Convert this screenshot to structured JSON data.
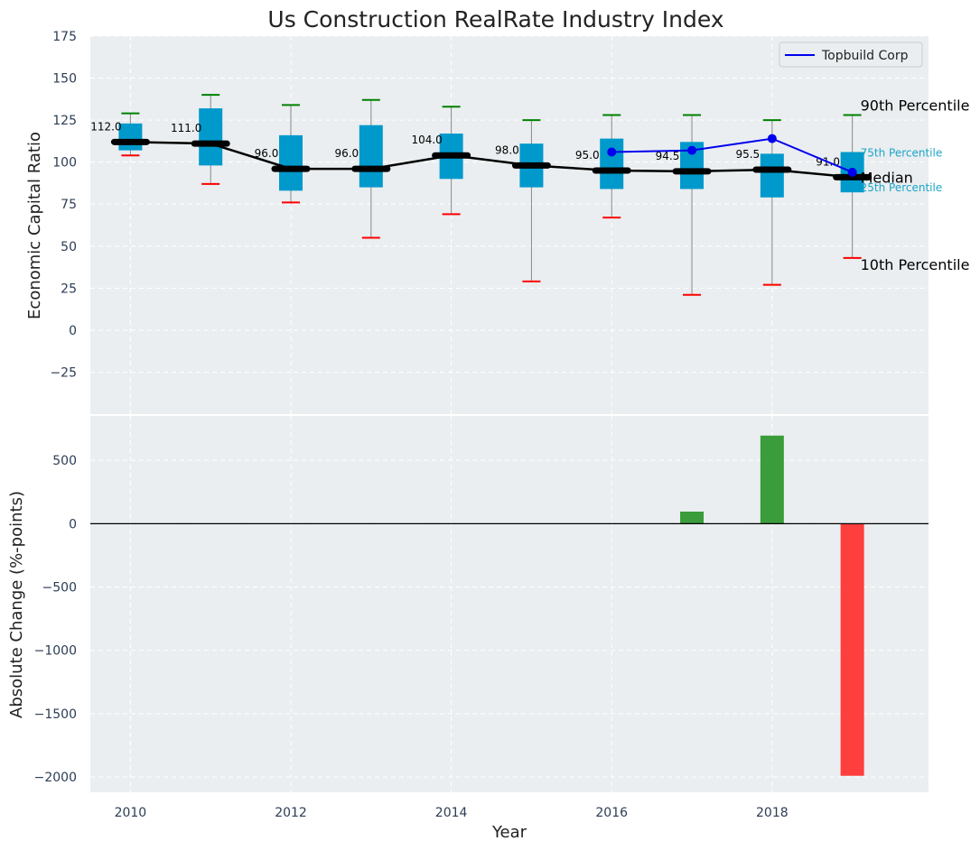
{
  "chart_data": {
    "type": "box-and-bar",
    "title": "Us Construction RealRate Industry Index",
    "xlabel": "Year",
    "x_ticks": [
      2010,
      2012,
      2014,
      2016,
      2018
    ],
    "x_range": [
      2009.5,
      2019.95
    ],
    "top": {
      "ylabel": "Economic Capital Ratio",
      "ylim": [
        -50,
        175
      ],
      "y_ticks": [
        -25,
        0,
        25,
        50,
        75,
        100,
        125,
        150,
        175
      ],
      "y_tick_labels": [
        "−25",
        "0",
        "25",
        "50",
        "75",
        "100",
        "125",
        "150",
        "175"
      ],
      "years": [
        2010,
        2011,
        2012,
        2013,
        2014,
        2015,
        2016,
        2017,
        2018,
        2019
      ],
      "p10": [
        104,
        87,
        76,
        55,
        69,
        29,
        67,
        21,
        27,
        43
      ],
      "p25": [
        107,
        98,
        83,
        85,
        90,
        85,
        84,
        84,
        79,
        82
      ],
      "median": [
        112.0,
        111.0,
        96.0,
        96.0,
        104.0,
        98.0,
        95.0,
        94.5,
        95.5,
        91.0
      ],
      "median_labels": [
        "112.0",
        "111.0",
        "96.0",
        "96.0",
        "104.0",
        "98.0",
        "95.0",
        "94.5",
        "95.5",
        "91.0"
      ],
      "p75": [
        123,
        132,
        116,
        122,
        117,
        111,
        114,
        112,
        105,
        106
      ],
      "p90": [
        129,
        140,
        134,
        137,
        133,
        125,
        128,
        128,
        125,
        128
      ],
      "company_name": "Topbuild Corp",
      "company_years": [
        2016,
        2017,
        2018,
        2019
      ],
      "company_values": [
        106,
        107,
        114,
        94
      ],
      "annotations": {
        "p90": "90th Percentile",
        "p75": "75th Percentile",
        "median": "Median",
        "p25": "25th Percentile",
        "p10": "10th Percentile"
      }
    },
    "bottom": {
      "ylabel": "Absolute Change (%-points)",
      "ylim": [
        -2120,
        850
      ],
      "y_ticks": [
        -2000,
        -1500,
        -1000,
        -500,
        0,
        500
      ],
      "y_tick_labels": [
        "−2000",
        "−1500",
        "−1000",
        "−500",
        "0",
        "500"
      ],
      "bars": [
        {
          "year": 2017,
          "value": 95
        },
        {
          "year": 2018,
          "value": 695
        },
        {
          "year": 2019,
          "value": -1990
        }
      ]
    },
    "colors": {
      "plot_bg": "#eaeef0",
      "grid": "#ffffff",
      "box": "#0099cc",
      "median": "#000000",
      "p90_cap": "#008000",
      "p10_cap": "#ff0000",
      "whisker": "#888888",
      "company": "#0000ee",
      "pos_bar": "#3a9c3a",
      "neg_bar": "#ff3e3e",
      "tick_text": "#2b3d55",
      "label_text": "#222222",
      "pct_label": "#1ca5c8"
    },
    "legend_position": "top-right"
  }
}
